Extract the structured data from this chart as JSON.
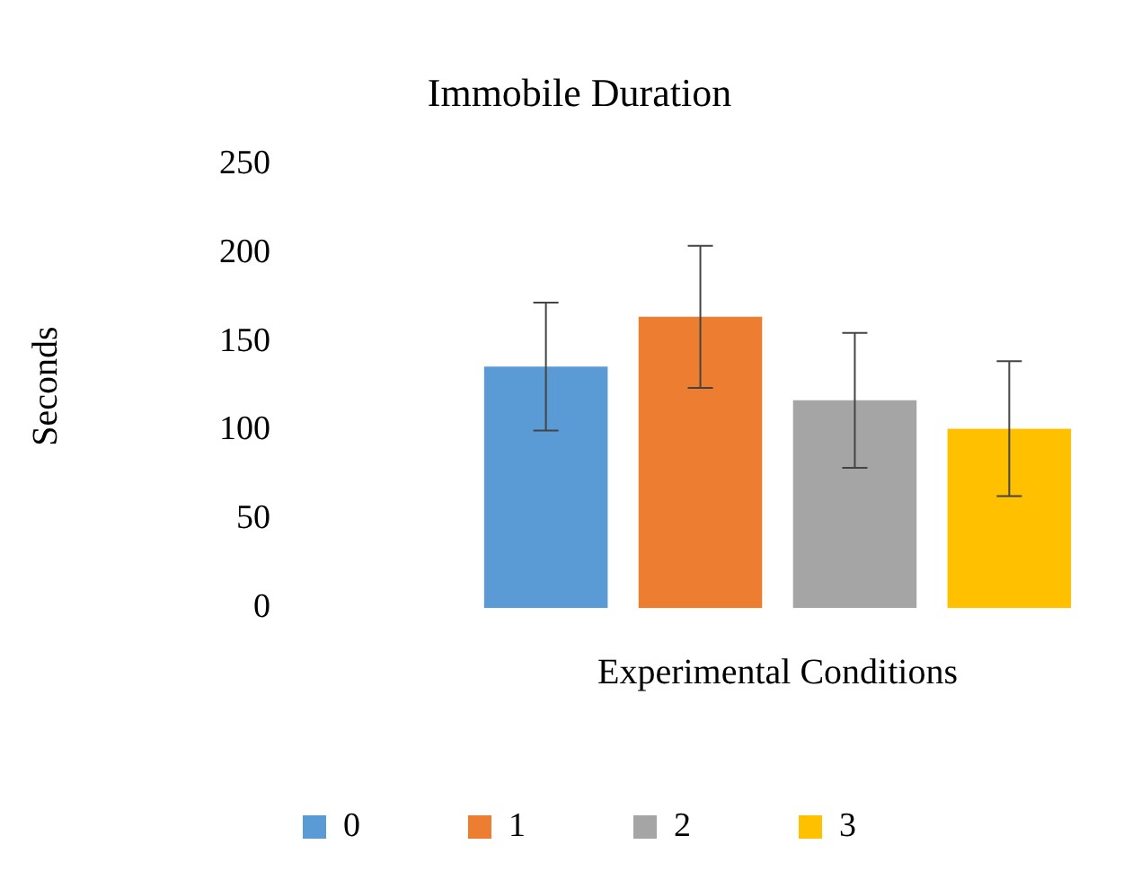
{
  "chart_data": {
    "type": "bar",
    "title": "Immobile Duration",
    "xlabel": "Experimental Conditions",
    "ylabel": "Seconds",
    "categories": [
      null
    ],
    "series": [
      {
        "name": "0",
        "color": "#5b9bd5",
        "values": [
          136
        ],
        "errors": [
          36
        ]
      },
      {
        "name": "1",
        "color": "#ed7d31",
        "values": [
          164
        ],
        "errors": [
          40
        ]
      },
      {
        "name": "2",
        "color": "#a5a5a5",
        "values": [
          117
        ],
        "errors": [
          38
        ]
      },
      {
        "name": "3",
        "color": "#ffc000",
        "values": [
          101
        ],
        "errors": [
          38
        ]
      }
    ],
    "ylim": [
      0,
      250
    ],
    "yticks": [
      0,
      50,
      100,
      150,
      200,
      250
    ],
    "grid": false,
    "legend": "bottom"
  }
}
